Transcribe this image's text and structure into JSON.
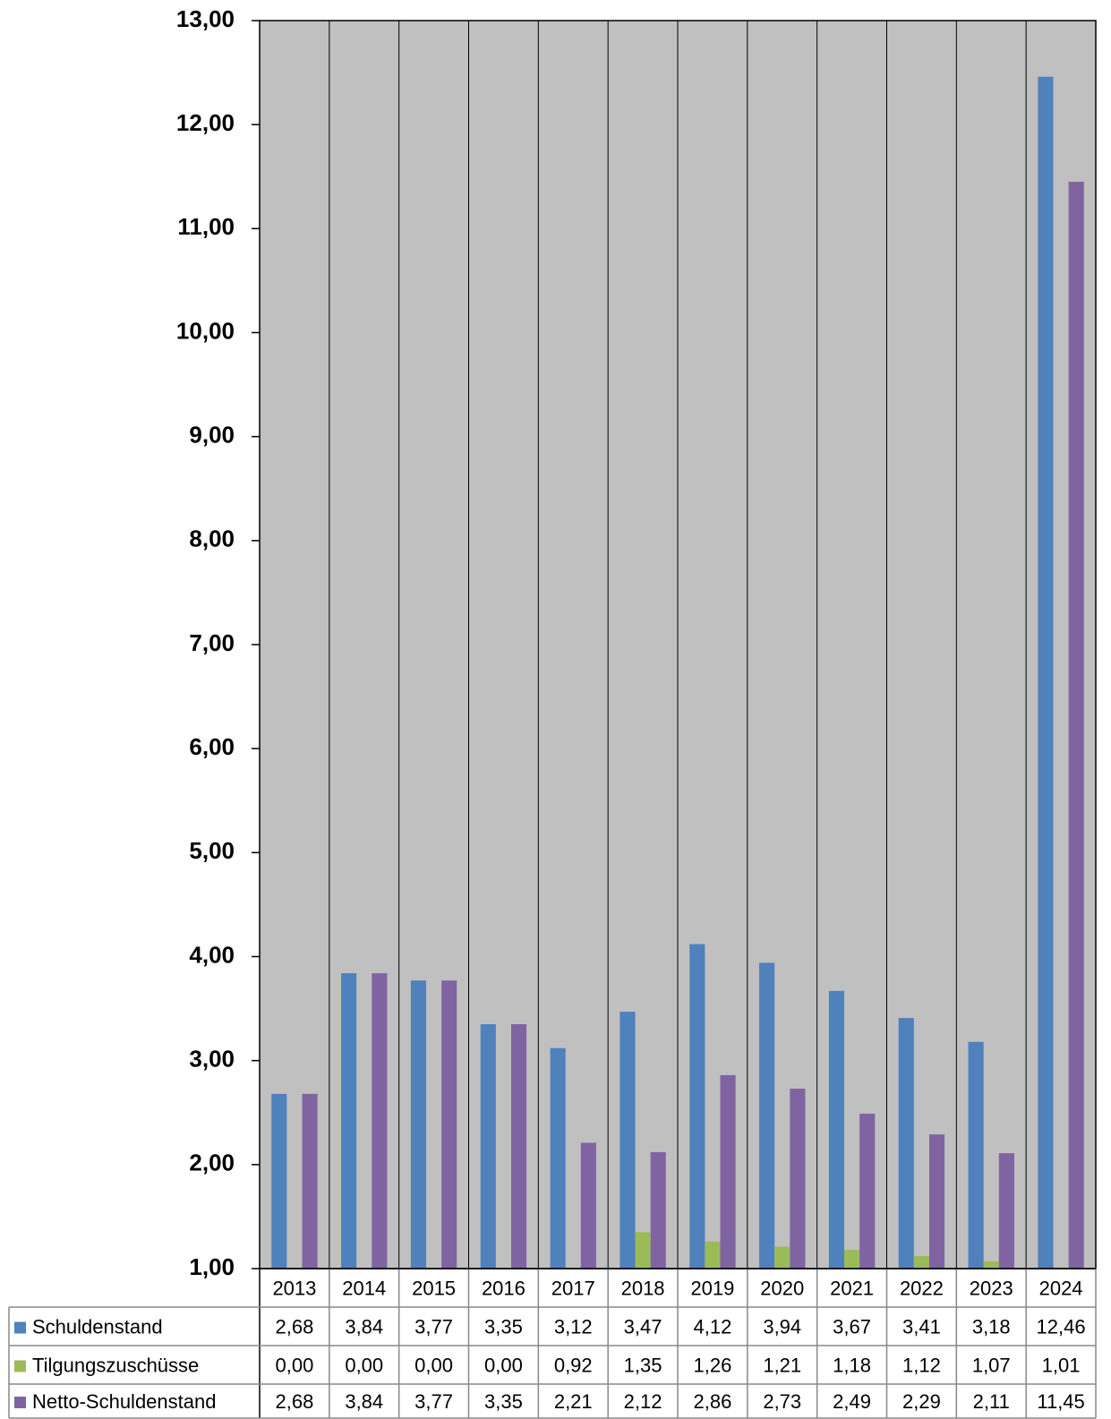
{
  "chart_data": {
    "type": "bar",
    "categories": [
      "2013",
      "2014",
      "2015",
      "2016",
      "2017",
      "2018",
      "2019",
      "2020",
      "2021",
      "2022",
      "2023",
      "2024"
    ],
    "series": [
      {
        "name": "Schuldenstand",
        "color": "#4f81bd",
        "values": [
          2.68,
          3.84,
          3.77,
          3.35,
          3.12,
          3.47,
          4.12,
          3.94,
          3.67,
          3.41,
          3.18,
          12.46
        ],
        "value_labels": [
          "2,68",
          "3,84",
          "3,77",
          "3,35",
          "3,12",
          "3,47",
          "4,12",
          "3,94",
          "3,67",
          "3,41",
          "3,18",
          "12,46"
        ]
      },
      {
        "name": "Tilgungszuschüsse",
        "color": "#9bbb59",
        "values": [
          0.0,
          0.0,
          0.0,
          0.0,
          0.92,
          1.35,
          1.26,
          1.21,
          1.18,
          1.12,
          1.07,
          1.01
        ],
        "value_labels": [
          "0,00",
          "0,00",
          "0,00",
          "0,00",
          "0,92",
          "1,35",
          "1,26",
          "1,21",
          "1,18",
          "1,12",
          "1,07",
          "1,01"
        ]
      },
      {
        "name": "Netto-Schuldenstand",
        "color": "#8064a2",
        "values": [
          2.68,
          3.84,
          3.77,
          3.35,
          2.21,
          2.12,
          2.86,
          2.73,
          2.49,
          2.29,
          2.11,
          11.45
        ],
        "value_labels": [
          "2,68",
          "3,84",
          "3,77",
          "3,35",
          "2,21",
          "2,12",
          "2,86",
          "2,73",
          "2,49",
          "2,29",
          "2,11",
          "11,45"
        ]
      }
    ],
    "ylim": [
      1,
      13
    ],
    "yticks": [
      {
        "value": 1,
        "label": "1,00"
      },
      {
        "value": 2,
        "label": "2,00"
      },
      {
        "value": 3,
        "label": "3,00"
      },
      {
        "value": 4,
        "label": "4,00"
      },
      {
        "value": 5,
        "label": "5,00"
      },
      {
        "value": 6,
        "label": "6,00"
      },
      {
        "value": 7,
        "label": "7,00"
      },
      {
        "value": 8,
        "label": "8,00"
      },
      {
        "value": 9,
        "label": "9,00"
      },
      {
        "value": 10,
        "label": "10,00"
      },
      {
        "value": 11,
        "label": "11,00"
      },
      {
        "value": 12,
        "label": "12,00"
      },
      {
        "value": 13,
        "label": "13,00"
      }
    ],
    "plot_background": "#c0c0c0",
    "data_table": true
  }
}
